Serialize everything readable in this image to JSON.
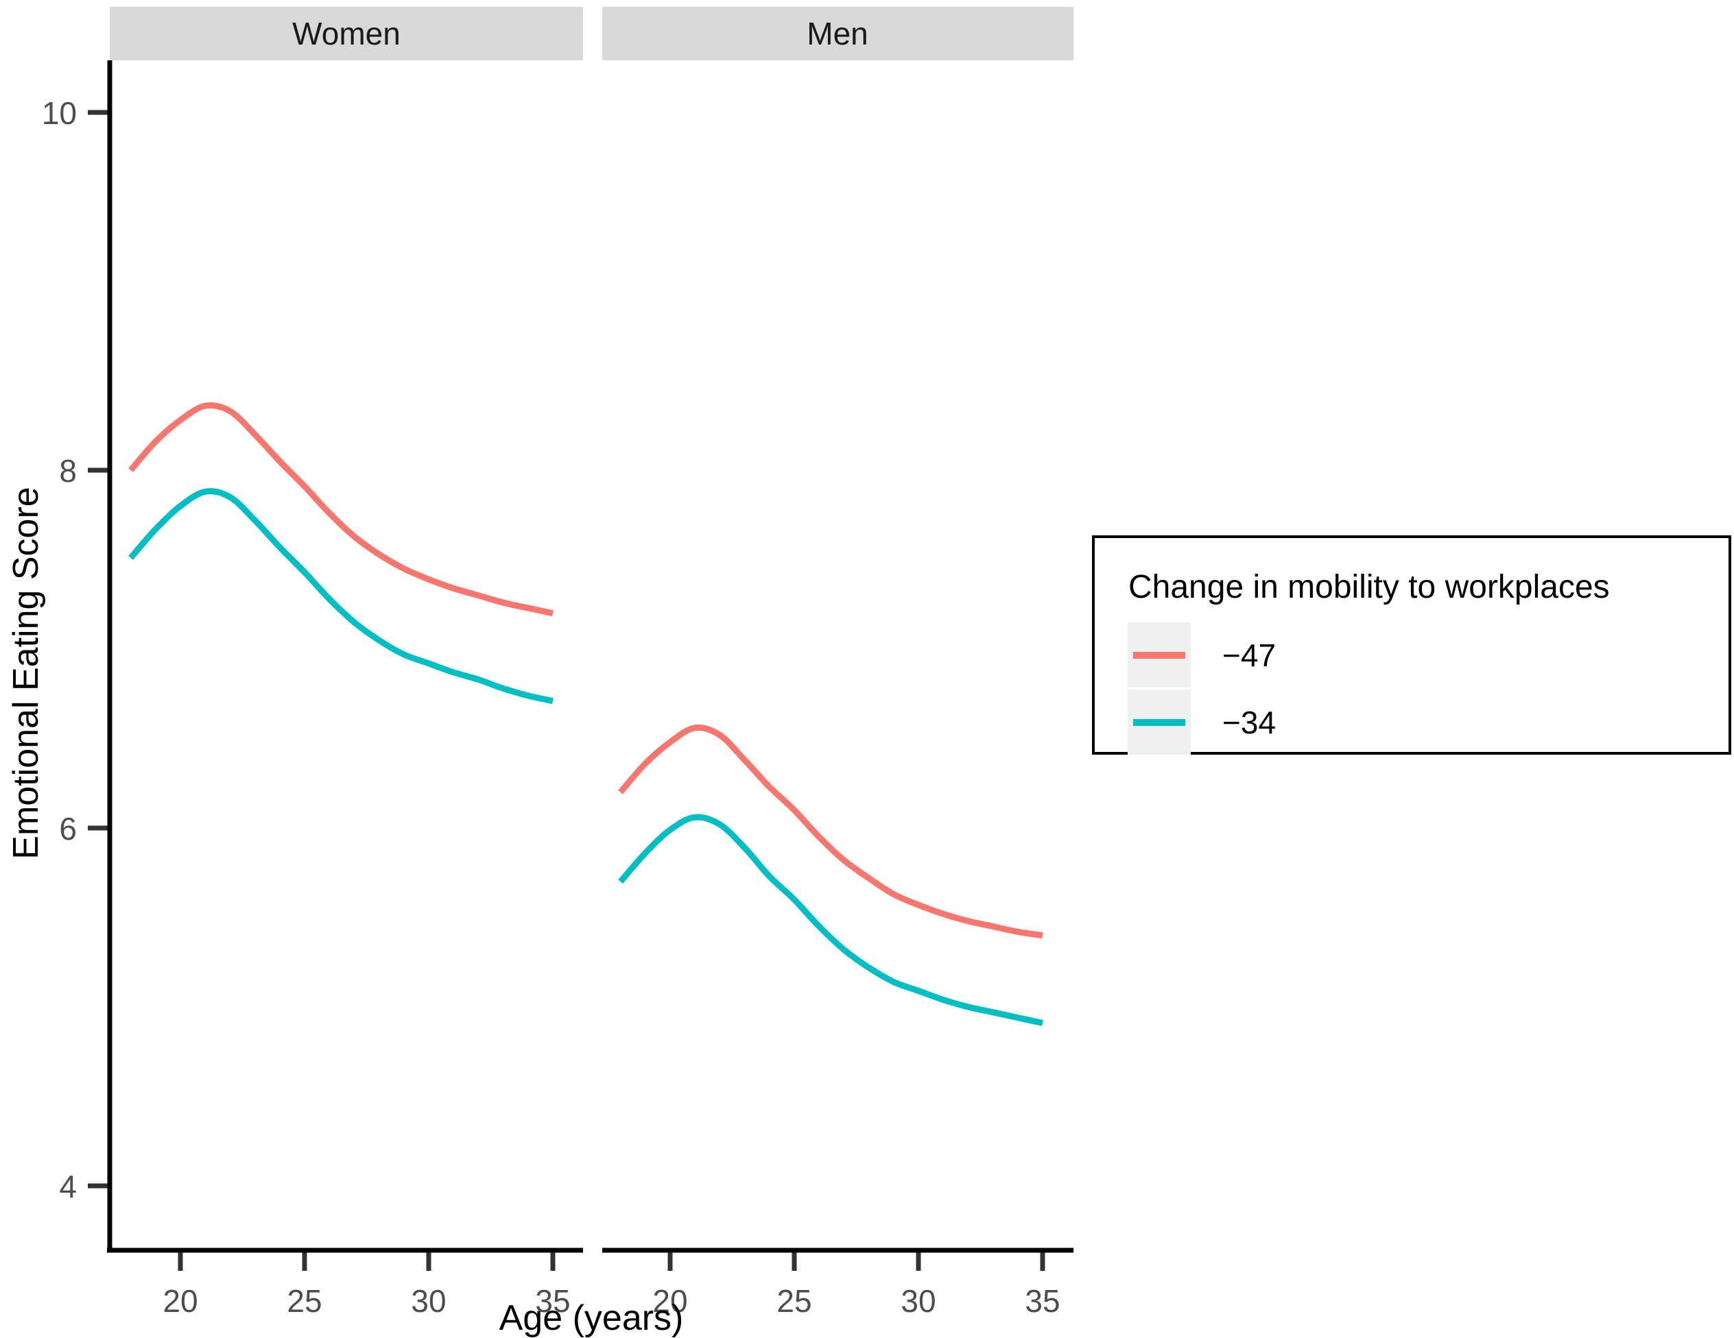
{
  "chart_data": {
    "type": "line",
    "x": [
      18,
      19,
      20,
      21,
      22,
      23,
      24,
      25,
      26,
      27,
      28,
      29,
      30,
      31,
      32,
      33,
      34,
      35
    ],
    "x_ticks": [
      20,
      25,
      30,
      35
    ],
    "y_ticks": [
      4,
      6,
      8,
      10
    ],
    "xlabel": "Age (years)",
    "ylabel": "Emotional Eating Score",
    "xlim": [
      17.1,
      36.2
    ],
    "ylim": [
      3.6,
      10.3
    ],
    "grid": false,
    "facets": [
      {
        "label": "Women",
        "series": [
          {
            "name": "−47",
            "color": "#F8766D",
            "values": [
              8.0,
              8.16,
              8.28,
              8.36,
              8.33,
              8.2,
              8.05,
              7.91,
              7.76,
              7.63,
              7.53,
              7.45,
              7.39,
              7.34,
              7.3,
              7.26,
              7.23,
              7.2
            ]
          },
          {
            "name": "−34",
            "color": "#00BFC4",
            "values": [
              7.51,
              7.67,
              7.8,
              7.88,
              7.85,
              7.72,
              7.57,
              7.43,
              7.28,
              7.15,
              7.05,
              6.97,
              6.92,
              6.87,
              6.83,
              6.78,
              6.74,
              6.71
            ]
          }
        ]
      },
      {
        "label": "Men",
        "series": [
          {
            "name": "−47",
            "color": "#F8766D",
            "values": [
              6.2,
              6.36,
              6.48,
              6.56,
              6.52,
              6.38,
              6.23,
              6.1,
              5.95,
              5.82,
              5.72,
              5.63,
              5.57,
              5.52,
              5.48,
              5.45,
              5.42,
              5.4
            ]
          },
          {
            "name": "−34",
            "color": "#00BFC4",
            "values": [
              5.7,
              5.86,
              5.99,
              6.06,
              6.02,
              5.89,
              5.73,
              5.6,
              5.45,
              5.32,
              5.22,
              5.14,
              5.09,
              5.04,
              5.0,
              4.97,
              4.94,
              4.91
            ]
          }
        ]
      }
    ],
    "legend": {
      "title": "Change in mobility to workplaces",
      "position": "right",
      "entries": [
        {
          "label": "−47",
          "color": "#F8766D"
        },
        {
          "label": "−34",
          "color": "#00BFC4"
        }
      ]
    },
    "strip_background": "#D9D9D9",
    "series_colors": {
      "neg47": "#F8766D",
      "neg34": "#00BFC4"
    }
  }
}
